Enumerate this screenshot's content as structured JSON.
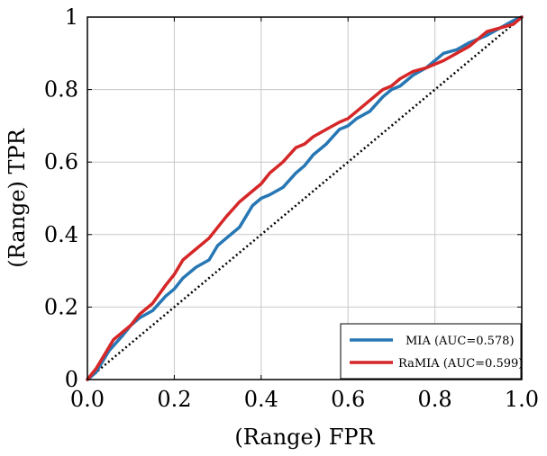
{
  "chart_data": {
    "type": "line",
    "xlabel": "(Range) FPR",
    "ylabel": "(Range) TPR",
    "xlim": [
      0.0,
      1.0
    ],
    "ylim": [
      0,
      1
    ],
    "x_ticks": [
      "0.0",
      "0.2",
      "0.4",
      "0.6",
      "0.8",
      "1.0"
    ],
    "y_ticks": [
      "0",
      "0.2",
      "0.4",
      "0.6",
      "0.8",
      "1"
    ],
    "grid": true,
    "legend_position": "bottom-right",
    "colors": {
      "MIA": "#2777b4",
      "RaMIA": "#d62728",
      "diagonal": "#000000"
    },
    "series": [
      {
        "name": "MIA (AUC=0.578)",
        "x": [
          0.0,
          0.02,
          0.05,
          0.08,
          0.1,
          0.12,
          0.15,
          0.18,
          0.2,
          0.22,
          0.25,
          0.28,
          0.3,
          0.32,
          0.35,
          0.38,
          0.4,
          0.42,
          0.45,
          0.48,
          0.5,
          0.52,
          0.55,
          0.58,
          0.6,
          0.62,
          0.65,
          0.68,
          0.7,
          0.72,
          0.75,
          0.78,
          0.8,
          0.82,
          0.85,
          0.88,
          0.9,
          0.92,
          0.95,
          0.98,
          1.0
        ],
        "y": [
          0.0,
          0.02,
          0.08,
          0.12,
          0.15,
          0.17,
          0.19,
          0.23,
          0.25,
          0.28,
          0.31,
          0.33,
          0.37,
          0.39,
          0.42,
          0.48,
          0.5,
          0.51,
          0.53,
          0.57,
          0.59,
          0.62,
          0.65,
          0.69,
          0.7,
          0.72,
          0.74,
          0.78,
          0.8,
          0.81,
          0.84,
          0.86,
          0.88,
          0.9,
          0.91,
          0.93,
          0.94,
          0.95,
          0.97,
          0.99,
          1.0
        ]
      },
      {
        "name": "RaMIA (AUC=0.599)",
        "x": [
          0.0,
          0.02,
          0.04,
          0.06,
          0.08,
          0.1,
          0.12,
          0.15,
          0.18,
          0.2,
          0.22,
          0.25,
          0.28,
          0.3,
          0.32,
          0.35,
          0.38,
          0.4,
          0.42,
          0.45,
          0.48,
          0.5,
          0.52,
          0.55,
          0.58,
          0.6,
          0.62,
          0.65,
          0.68,
          0.7,
          0.72,
          0.75,
          0.78,
          0.8,
          0.82,
          0.85,
          0.88,
          0.9,
          0.92,
          0.95,
          0.98,
          1.0
        ],
        "y": [
          0.0,
          0.03,
          0.07,
          0.11,
          0.13,
          0.15,
          0.18,
          0.21,
          0.26,
          0.29,
          0.33,
          0.36,
          0.39,
          0.42,
          0.45,
          0.49,
          0.52,
          0.54,
          0.57,
          0.6,
          0.64,
          0.65,
          0.67,
          0.69,
          0.71,
          0.72,
          0.74,
          0.77,
          0.8,
          0.81,
          0.83,
          0.85,
          0.86,
          0.87,
          0.88,
          0.9,
          0.92,
          0.94,
          0.96,
          0.97,
          0.98,
          1.0
        ]
      }
    ],
    "diagonal": {
      "x": [
        0,
        1
      ],
      "y": [
        0,
        1
      ]
    }
  }
}
